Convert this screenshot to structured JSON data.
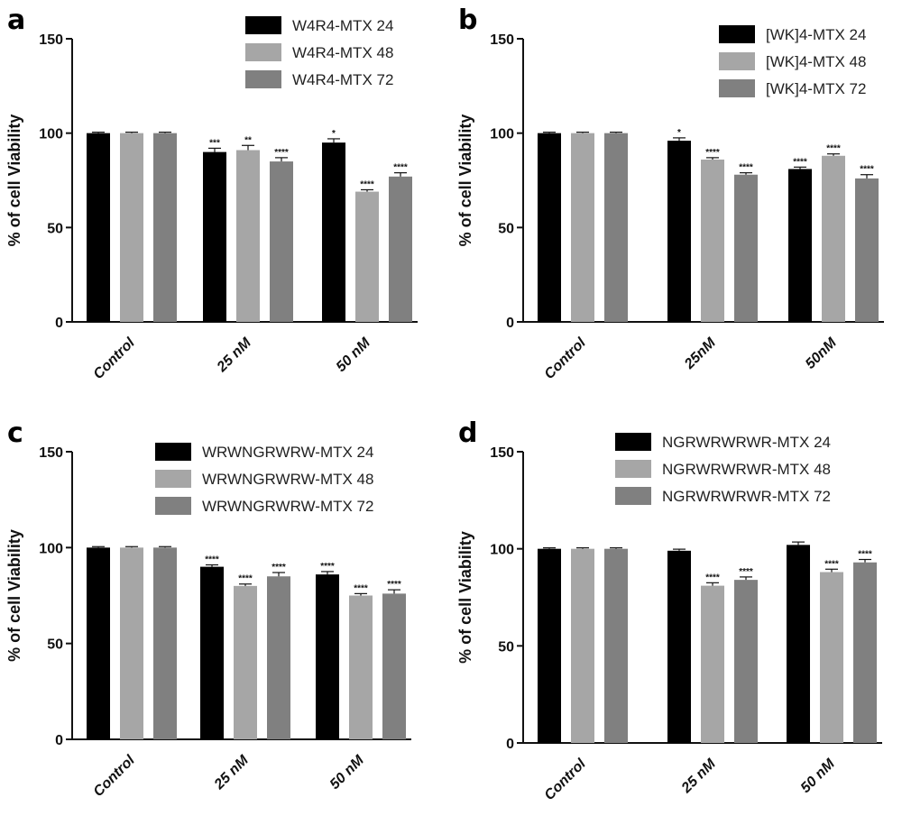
{
  "chart_data": [
    {
      "type": "bar",
      "panel_label": "a",
      "ylabel": "% of cell Viability",
      "ylim": [
        0,
        150
      ],
      "yticks": [
        "0",
        "50",
        "100",
        "150"
      ],
      "categories": [
        "Control",
        "25 nM",
        "50 nM"
      ],
      "legend_position": "top-right",
      "series": [
        {
          "name": "W4R4-MTX 24",
          "color": "#000000",
          "values": [
            100,
            90,
            95
          ],
          "errors": [
            0.5,
            2,
            2
          ],
          "significance": [
            "",
            "***",
            "*"
          ]
        },
        {
          "name": "W4R4-MTX 48",
          "color": "#a6a6a6",
          "values": [
            100,
            91,
            69
          ],
          "errors": [
            0.5,
            2.5,
            1
          ],
          "significance": [
            "",
            "**",
            "****"
          ]
        },
        {
          "name": "W4R4-MTX 72",
          "color": "#808080",
          "values": [
            100,
            85,
            77
          ],
          "errors": [
            0.5,
            2,
            2
          ],
          "significance": [
            "",
            "****",
            "****"
          ]
        }
      ]
    },
    {
      "type": "bar",
      "panel_label": "b",
      "ylabel": "% of cell Viability",
      "ylim": [
        0,
        150
      ],
      "yticks": [
        "0",
        "50",
        "100",
        "150"
      ],
      "categories": [
        "Control",
        "25nM",
        "50nM"
      ],
      "legend_position": "top-right",
      "series": [
        {
          "name": "[WK]4-MTX 24",
          "color": "#000000",
          "values": [
            100,
            96,
            81
          ],
          "errors": [
            0.5,
            1.5,
            1
          ],
          "significance": [
            "",
            "*",
            "****"
          ]
        },
        {
          "name": "[WK]4-MTX 48",
          "color": "#a6a6a6",
          "values": [
            100,
            86,
            88
          ],
          "errors": [
            0.5,
            1,
            1
          ],
          "significance": [
            "",
            "****",
            "****"
          ]
        },
        {
          "name": "[WK]4-MTX 72",
          "color": "#808080",
          "values": [
            100,
            78,
            76
          ],
          "errors": [
            0.5,
            1,
            2
          ],
          "significance": [
            "",
            "****",
            "****"
          ]
        }
      ]
    },
    {
      "type": "bar",
      "panel_label": "c",
      "ylabel": "% of cell Viability",
      "ylim": [
        0,
        150
      ],
      "yticks": [
        "0",
        "50",
        "100",
        "150"
      ],
      "categories": [
        "Control",
        "25 nM",
        "50 nM"
      ],
      "legend_position": "top-right",
      "series": [
        {
          "name": "WRWNGRWRW-MTX 24",
          "color": "#000000",
          "values": [
            100,
            90,
            86
          ],
          "errors": [
            0.5,
            1,
            1.5
          ],
          "significance": [
            "",
            "****",
            "****"
          ]
        },
        {
          "name": "WRWNGRWRW-MTX 48",
          "color": "#a6a6a6",
          "values": [
            100,
            80,
            75
          ],
          "errors": [
            0.5,
            1,
            1
          ],
          "significance": [
            "",
            "****",
            "****"
          ]
        },
        {
          "name": "WRWNGRWRW-MTX 72",
          "color": "#808080",
          "values": [
            100,
            85,
            76
          ],
          "errors": [
            0.5,
            2,
            2
          ],
          "significance": [
            "",
            "****",
            "****"
          ]
        }
      ]
    },
    {
      "type": "bar",
      "panel_label": "d",
      "ylabel": "% of cell Viability",
      "ylim": [
        0,
        150
      ],
      "yticks": [
        "0",
        "50",
        "100",
        "150"
      ],
      "categories": [
        "Control",
        "25 nM",
        "50 nM"
      ],
      "legend_position": "top-right",
      "series": [
        {
          "name": "NGRWRWRWR-MTX 24",
          "color": "#000000",
          "values": [
            100,
            99,
            102
          ],
          "errors": [
            0.5,
            0.8,
            1.5
          ],
          "significance": [
            "",
            "",
            ""
          ]
        },
        {
          "name": "NGRWRWRWR-MTX 48",
          "color": "#a6a6a6",
          "values": [
            100,
            81,
            88
          ],
          "errors": [
            0.5,
            1.5,
            1.5
          ],
          "significance": [
            "",
            "****",
            "****"
          ]
        },
        {
          "name": "NGRWRWRWR-MTX 72",
          "color": "#808080",
          "values": [
            100,
            84,
            93
          ],
          "errors": [
            0.5,
            1.5,
            1.5
          ],
          "significance": [
            "",
            "****",
            "****"
          ]
        }
      ]
    }
  ]
}
